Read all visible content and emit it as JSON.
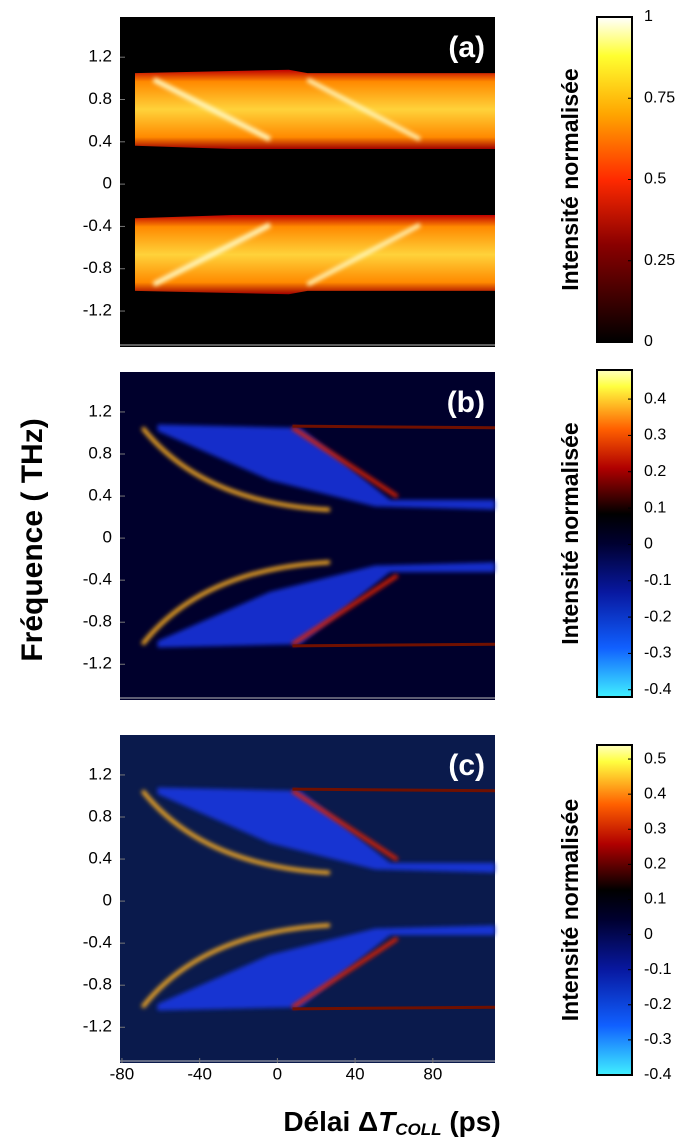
{
  "figure": {
    "ylabel": "Fréquence ( THz)",
    "xlabel": {
      "text": "Délai Δ",
      "var": "T",
      "sub": "COLL",
      "unit": " (ps)"
    }
  },
  "chart_data": [
    {
      "type": "heatmap",
      "title": "(a)",
      "xlim": [
        -81,
        112
      ],
      "ylim": [
        -1.54,
        1.58
      ],
      "yticks": [
        1.2,
        0.8,
        0.4,
        0,
        -0.4,
        -0.8,
        -1.2
      ],
      "colorbar_label": "Intensité normalisée",
      "clim": [
        0,
        1
      ],
      "cticks": [
        1,
        0.75,
        0.5,
        0.25,
        0
      ]
    },
    {
      "type": "heatmap",
      "title": "(b)",
      "xlim": [
        -81,
        112
      ],
      "ylim": [
        -1.54,
        1.58
      ],
      "yticks": [
        1.2,
        0.8,
        0.4,
        0,
        -0.4,
        -0.8,
        -1.2
      ],
      "colorbar_label": "Intensité normalisée",
      "clim": [
        -0.42,
        0.48
      ],
      "cticks": [
        0.4,
        0.3,
        0.2,
        0.1,
        0,
        -0.1,
        -0.2,
        -0.3,
        -0.4
      ]
    },
    {
      "type": "heatmap",
      "title": "(c)",
      "xlim": [
        -81,
        112
      ],
      "ylim": [
        -1.54,
        1.58
      ],
      "xticks": [
        -80,
        -40,
        0,
        40,
        80
      ],
      "yticks": [
        1.2,
        0.8,
        0.4,
        0,
        -0.4,
        -0.8,
        -1.2
      ],
      "colorbar_label": "Intensité normalisée",
      "clim": [
        -0.4,
        0.54
      ],
      "cticks": [
        0.5,
        0.4,
        0.3,
        0.2,
        0.1,
        0,
        -0.1,
        -0.2,
        -0.3,
        -0.4
      ]
    }
  ]
}
